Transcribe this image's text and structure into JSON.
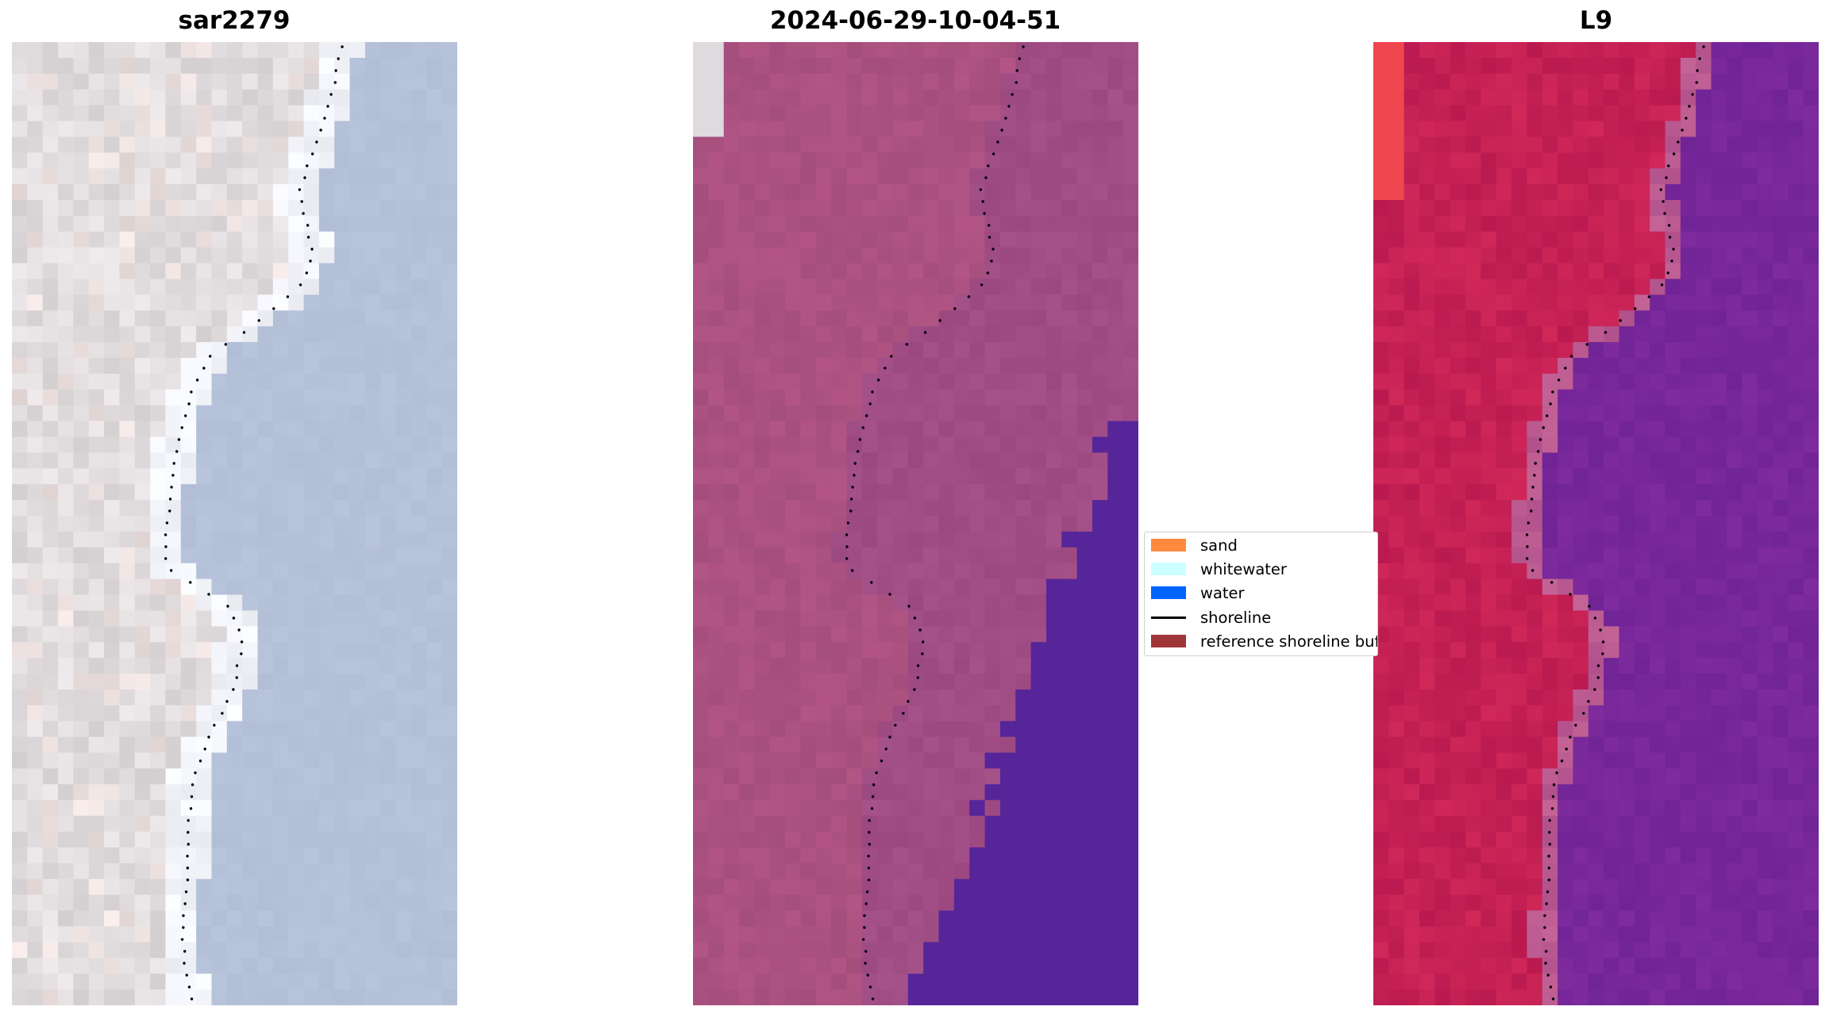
{
  "panels": [
    {
      "title": "sar2279",
      "style": "rgb-natural-color"
    },
    {
      "title": "2024-06-29-10-04-51",
      "style": "classified-overlay"
    },
    {
      "title": "L9",
      "style": "false-color-index"
    }
  ],
  "legend": {
    "items": [
      {
        "label": "sand",
        "color": "#ff8a3d",
        "kind": "patch"
      },
      {
        "label": "whitewater",
        "color": "#ccffff",
        "kind": "patch"
      },
      {
        "label": "water",
        "color": "#0064ff",
        "kind": "patch"
      },
      {
        "label": "shoreline",
        "color": "#000000",
        "kind": "line"
      },
      {
        "label": "reference shoreline buffer",
        "color": "#a0353a",
        "kind": "patch"
      }
    ]
  },
  "colors": {
    "land_rgb": "#d3d2d8",
    "water_rgb": "#b3bfd6",
    "whitewater_rgb": "#f4f6fb",
    "classified_land": "#a8507e",
    "classified_water_mask": "#56259a",
    "index_land": "#c2225a",
    "index_water": "#7a2a9a"
  }
}
